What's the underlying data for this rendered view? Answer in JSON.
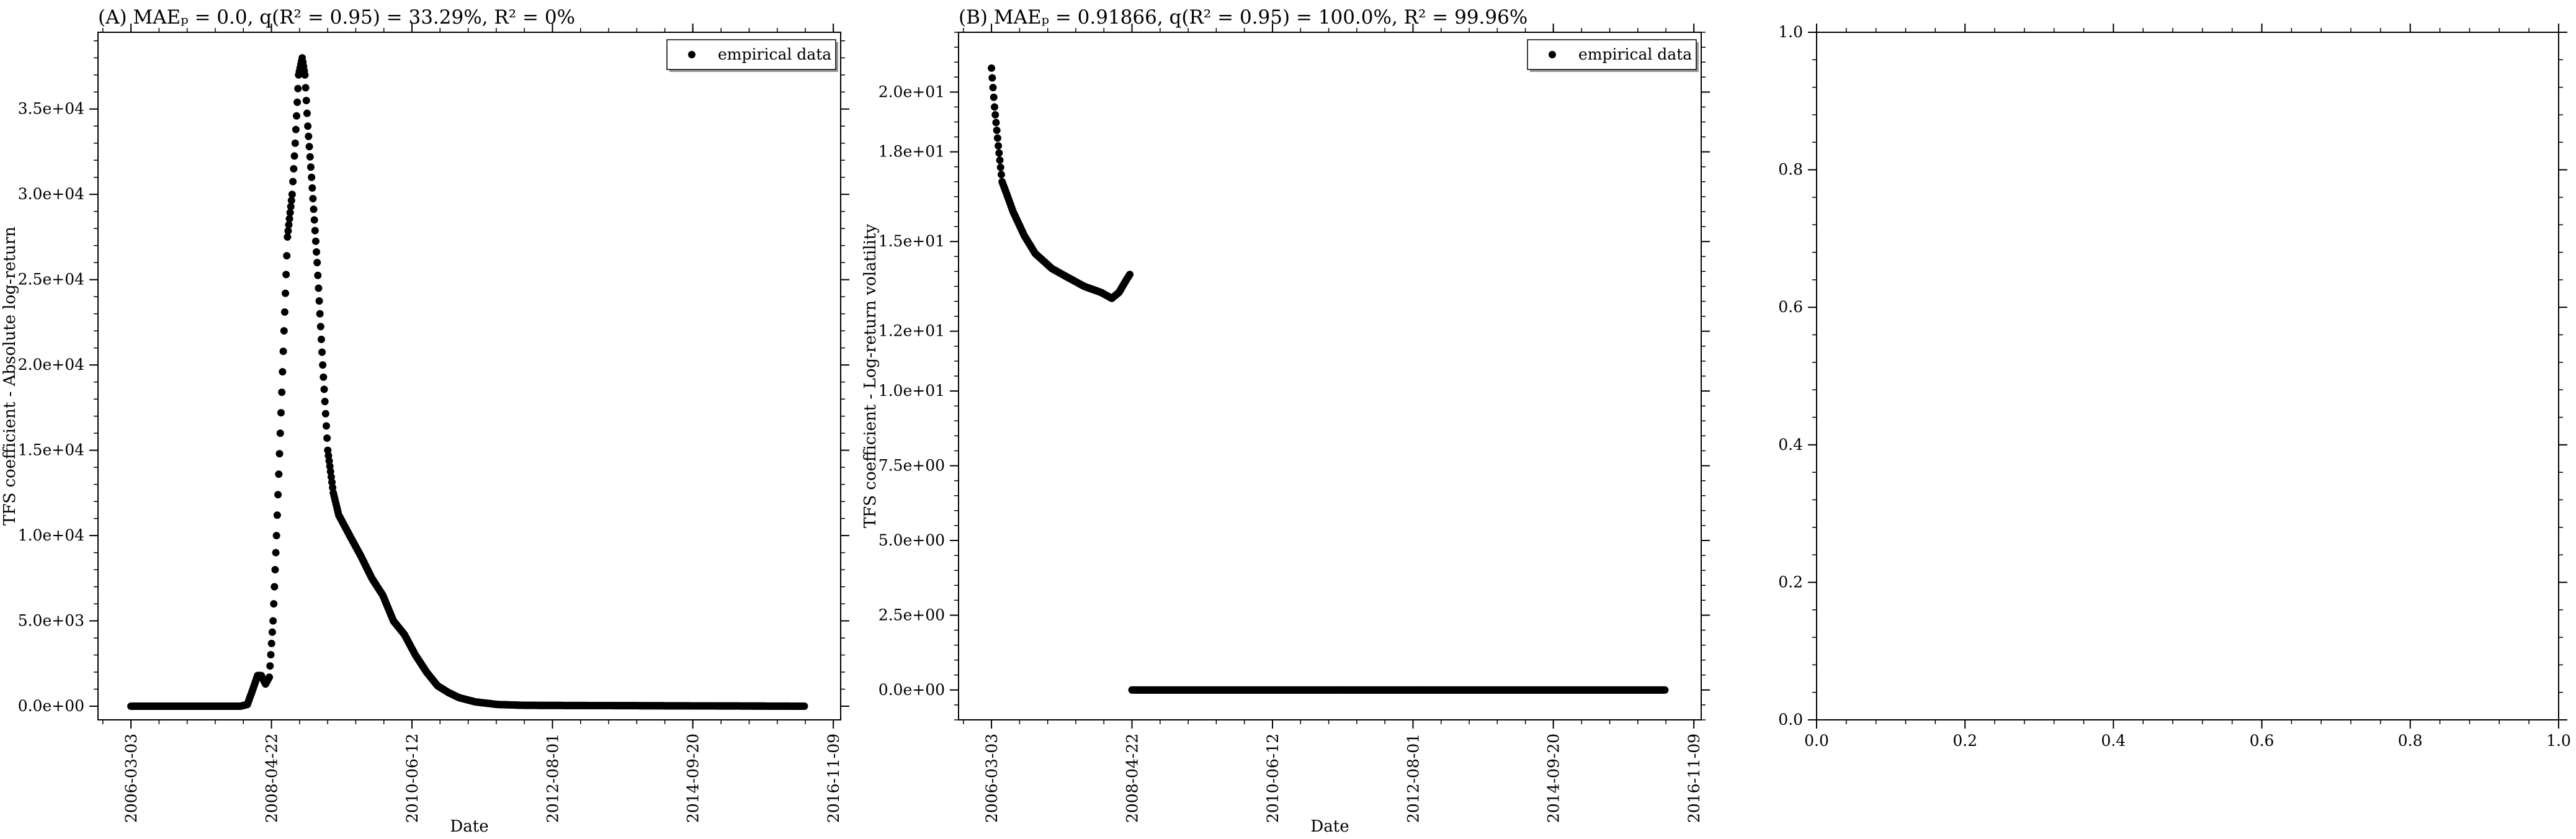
{
  "chart_data": [
    {
      "type": "scatter",
      "title": "(A) MAEₚ = 0.0, q(R² = 0.95) = 33.29%, R² = 0%",
      "xlabel": "Date",
      "ylabel": "TFS coefficient - Absolute log-return",
      "x_ticks": [
        "2006-03-03",
        "2008-04-22",
        "2010-06-12",
        "2012-08-01",
        "2014-09-20",
        "2016-11-09"
      ],
      "y_ticks": [
        "0.0e+00",
        "5.0e+03",
        "1.0e+04",
        "1.5e+04",
        "2.0e+04",
        "2.5e+04",
        "3.0e+04",
        "3.5e+04"
      ],
      "xlim": [
        "2005-09-01",
        "2016-12-20"
      ],
      "ylim": [
        -800,
        39500
      ],
      "legend": {
        "position": "top-right",
        "entries": [
          "empirical data"
        ]
      },
      "grid": false,
      "series": [
        {
          "name": "empirical data",
          "color": "#000000",
          "points": [
            [
              "2006-03-03",
              0
            ],
            [
              "2007-11-01",
              0
            ],
            [
              "2007-12-10",
              100
            ],
            [
              "2008-01-10",
              1000
            ],
            [
              "2008-02-05",
              1800
            ],
            [
              "2008-02-25",
              1800
            ],
            [
              "2008-03-20",
              1300
            ],
            [
              "2008-04-10",
              1700
            ],
            [
              "2008-05-01",
              5000
            ],
            [
              "2008-05-20",
              10000
            ],
            [
              "2008-06-10",
              16000
            ],
            [
              "2008-07-01",
              22000
            ],
            [
              "2008-07-20",
              27500
            ],
            [
              "2008-08-15",
              30000
            ],
            [
              "2008-09-01",
              33000
            ],
            [
              "2008-09-20",
              37000
            ],
            [
              "2008-10-10",
              38000
            ],
            [
              "2008-10-25",
              37000
            ],
            [
              "2008-11-10",
              34000
            ],
            [
              "2008-12-01",
              31000
            ],
            [
              "2009-01-01",
              26000
            ],
            [
              "2009-02-01",
              20000
            ],
            [
              "2009-03-01",
              15000
            ],
            [
              "2009-04-01",
              12500
            ],
            [
              "2009-05-01",
              11200
            ],
            [
              "2009-07-01",
              10000
            ],
            [
              "2009-09-01",
              8800
            ],
            [
              "2009-11-01",
              7500
            ],
            [
              "2010-01-01",
              6500
            ],
            [
              "2010-03-01",
              5000
            ],
            [
              "2010-05-01",
              4200
            ],
            [
              "2010-07-01",
              3000
            ],
            [
              "2010-09-01",
              2000
            ],
            [
              "2010-11-01",
              1200
            ],
            [
              "2011-01-01",
              800
            ],
            [
              "2011-03-01",
              500
            ],
            [
              "2011-06-01",
              250
            ],
            [
              "2011-10-01",
              100
            ],
            [
              "2012-03-01",
              50
            ],
            [
              "2014-09-20",
              20
            ],
            [
              "2016-06-01",
              0
            ]
          ]
        }
      ]
    },
    {
      "type": "scatter",
      "title": "(B) MAEₚ = 0.91866, q(R² = 0.95) = 100.0%, R² = 99.96%",
      "xlabel": "Date",
      "ylabel": "TFS coefficient - Log-return volatility",
      "x_ticks": [
        "2006-03-03",
        "2008-04-22",
        "2010-06-12",
        "2012-08-01",
        "2014-09-20",
        "2016-11-09"
      ],
      "y_ticks": [
        "0.0e+00",
        "2.5e+00",
        "5.0e+00",
        "7.5e+00",
        "1.0e+01",
        "1.2e+01",
        "1.5e+01",
        "1.8e+01",
        "2.0e+01"
      ],
      "xlim": [
        "2005-09-01",
        "2016-12-20"
      ],
      "ylim": [
        -1.0,
        22.0
      ],
      "legend": {
        "position": "top-right",
        "entries": [
          "empirical data"
        ]
      },
      "grid": false,
      "series": [
        {
          "name": "empirical data",
          "color": "#000000",
          "points": [
            [
              "2006-03-03",
              20.8
            ],
            [
              "2006-03-20",
              19.5
            ],
            [
              "2006-04-10",
              18.2
            ],
            [
              "2006-05-01",
              17.0
            ],
            [
              "2006-06-01",
              16.5
            ],
            [
              "2006-07-01",
              16.0
            ],
            [
              "2006-09-01",
              15.2
            ],
            [
              "2006-11-01",
              14.6
            ],
            [
              "2007-02-01",
              14.1
            ],
            [
              "2007-05-01",
              13.8
            ],
            [
              "2007-08-01",
              13.5
            ],
            [
              "2007-11-01",
              13.3
            ],
            [
              "2008-01-01",
              13.1
            ],
            [
              "2008-02-10",
              13.3
            ],
            [
              "2008-03-20",
              13.7
            ],
            [
              "2008-04-10",
              13.9
            ],
            [
              "2008-04-22",
              0.0
            ],
            [
              "2016-06-01",
              0.0
            ]
          ]
        }
      ]
    },
    {
      "type": "scatter",
      "title": "",
      "x_ticks": [
        "0.0",
        "0.2",
        "0.4",
        "0.6",
        "0.8",
        "1.0"
      ],
      "y_ticks": [
        "0.0",
        "0.2",
        "0.4",
        "0.6",
        "0.8",
        "1.0"
      ],
      "xlim": [
        0,
        1
      ],
      "ylim": [
        0,
        1
      ],
      "grid": false,
      "series": []
    }
  ]
}
